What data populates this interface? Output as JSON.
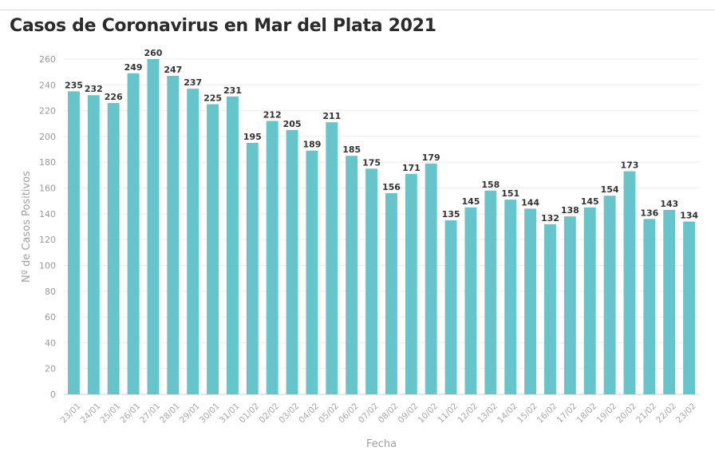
{
  "title": "Casos de Coronavirus en Mar del Plata 2021",
  "colors": {
    "bar": "#66c4cb",
    "grid": "#ececec"
  },
  "chart_data": {
    "type": "bar",
    "title": "Casos de Coronavirus en Mar del Plata 2021",
    "xlabel": "Fecha",
    "ylabel": "Nº de Casos Positivos",
    "ylim": [
      0,
      260
    ],
    "yticks": [
      0,
      20,
      40,
      60,
      80,
      100,
      120,
      140,
      160,
      180,
      200,
      220,
      240,
      260
    ],
    "grid": true,
    "categories": [
      "23/01",
      "24/01",
      "25/01",
      "26/01",
      "27/01",
      "28/01",
      "29/01",
      "30/01",
      "31/01",
      "01/02",
      "02/02",
      "03/02",
      "04/02",
      "05/02",
      "06/02",
      "07/02",
      "08/02",
      "09/02",
      "10/02",
      "11/02",
      "12/02",
      "13/02",
      "14/02",
      "15/02",
      "16/02",
      "17/02",
      "18/02",
      "19/02",
      "20/02",
      "21/02",
      "22/02",
      "23/02"
    ],
    "values": [
      235,
      232,
      226,
      249,
      260,
      247,
      237,
      225,
      231,
      195,
      212,
      205,
      189,
      211,
      185,
      175,
      156,
      171,
      179,
      135,
      145,
      158,
      151,
      144,
      132,
      138,
      145,
      154,
      173,
      136,
      143,
      134
    ]
  }
}
